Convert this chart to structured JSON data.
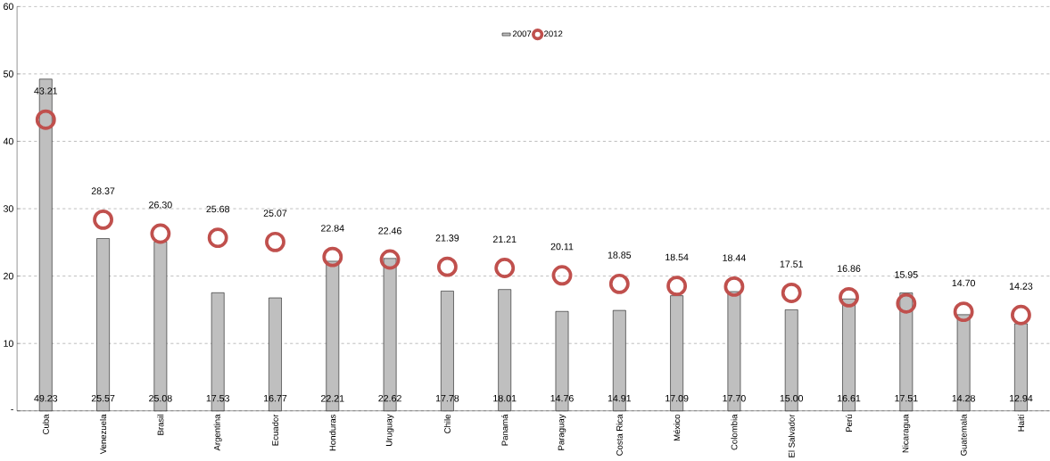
{
  "chart_data": {
    "type": "bar",
    "categories": [
      "Cuba",
      "Venezuela",
      "Brasil",
      "Argentina",
      "Ecuador",
      "Honduras",
      "Uruguay",
      "Chile",
      "Panamá",
      "Paraguay",
      "Costa Rica",
      "México",
      "Colombia",
      "El Salvador",
      "Perú",
      "Nicaragua",
      "Guatemala",
      "Haití"
    ],
    "series": [
      {
        "name": "2007",
        "color": "#bfbfbf",
        "values": [
          49.23,
          25.57,
          25.08,
          17.53,
          16.77,
          22.21,
          22.62,
          17.78,
          18.01,
          14.76,
          14.91,
          17.09,
          17.7,
          15.0,
          16.61,
          17.51,
          14.28,
          12.94
        ],
        "value_labels": [
          "49.23",
          "25.57",
          "25.08",
          "17.53",
          "16.77",
          "22.21",
          "22.62",
          "17.78",
          "18.01",
          "14.76",
          "14.91",
          "17.09",
          "17.70",
          "15.00",
          "16.61",
          "17.51",
          "14.28",
          "12.94"
        ]
      },
      {
        "name": "2012",
        "type": "scatter",
        "color": "#c0504d",
        "values": [
          43.21,
          28.37,
          26.3,
          25.68,
          25.07,
          22.84,
          22.46,
          21.39,
          21.21,
          20.11,
          18.85,
          18.54,
          18.44,
          17.51,
          16.86,
          15.95,
          14.7,
          14.23
        ],
        "value_labels": [
          "43.21",
          "28.37",
          "26.30",
          "25.68",
          "25.07",
          "22.84",
          "22.46",
          "21.39",
          "21.21",
          "20.11",
          "18.85",
          "18.54",
          "18.44",
          "17.51",
          "16.86",
          "15.95",
          "14.70",
          "14.23"
        ]
      }
    ],
    "ylim": [
      0,
      60
    ],
    "yticks": [
      {
        "value": 0,
        "label": "-"
      },
      10,
      20,
      30,
      40,
      50,
      60
    ],
    "grid": "y",
    "legend": "top",
    "marker": "circle"
  }
}
